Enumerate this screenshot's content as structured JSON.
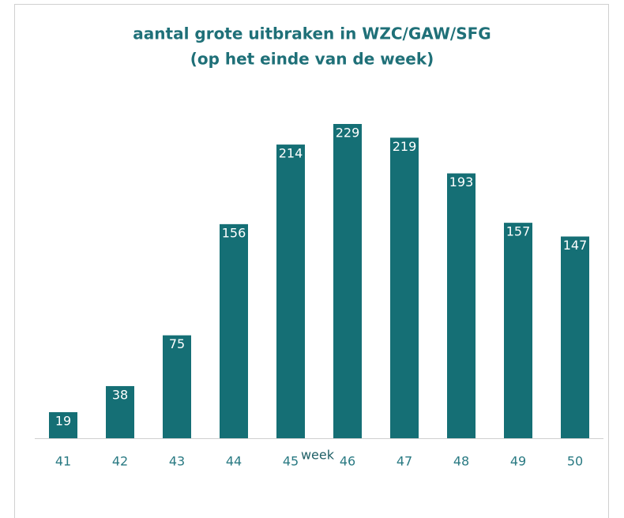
{
  "chart_data": {
    "type": "bar",
    "title": [
      "aantal grote uitbraken in WZC/GAW/SFG",
      "(op het einde van de week)"
    ],
    "x_label": "week",
    "categories": [
      "41",
      "42",
      "43",
      "44",
      "45",
      "46",
      "47",
      "48",
      "49",
      "50"
    ],
    "values": [
      19,
      38,
      75,
      156,
      214,
      229,
      219,
      193,
      157,
      147
    ],
    "color": "#156f75"
  }
}
